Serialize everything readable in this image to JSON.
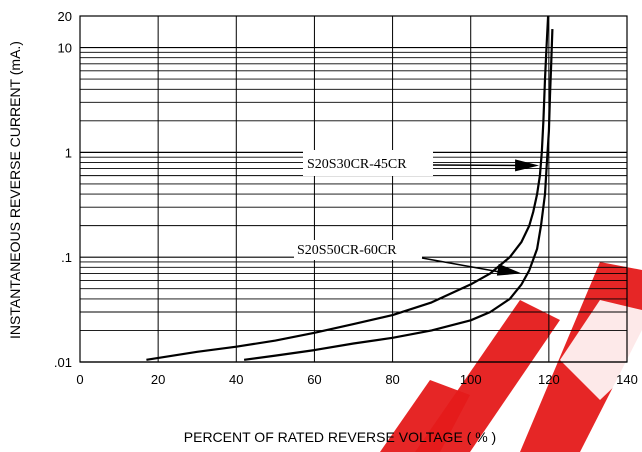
{
  "chart_data": {
    "type": "line",
    "xlabel": "PERCENT OF RATED REVERSE VOLTAGE ( % )",
    "ylabel": "INSTANTANEOUS REVERSE CURRENT (mA.)",
    "xlim": [
      0,
      140
    ],
    "ylim": [
      0.01,
      20
    ],
    "yscale": "log",
    "grid": true,
    "x_ticks": [
      "0",
      "20",
      "40",
      "60",
      "80",
      "100",
      "120",
      "140"
    ],
    "y_ticks": [
      ".01",
      ".1",
      "1",
      "10",
      "20"
    ],
    "series": [
      {
        "name": "S20S30CR-45CR",
        "x": [
          17,
          30,
          40,
          50,
          60,
          70,
          80,
          90,
          100,
          105,
          110,
          113,
          115,
          116,
          117,
          117.7,
          118.2,
          118.6,
          119,
          119.4,
          119.8
        ],
        "y": [
          0.0105,
          0.0125,
          0.014,
          0.016,
          0.019,
          0.023,
          0.028,
          0.037,
          0.055,
          0.07,
          0.1,
          0.14,
          0.2,
          0.27,
          0.4,
          0.6,
          1.0,
          2.0,
          5.0,
          10,
          20
        ],
        "color": "#000000"
      },
      {
        "name": "S20S50CR-60CR",
        "x": [
          42,
          50,
          60,
          70,
          80,
          90,
          100,
          105,
          110,
          113,
          115,
          117,
          118,
          119,
          119.5,
          120,
          120.3,
          120.6,
          120.9
        ],
        "y": [
          0.0105,
          0.0115,
          0.013,
          0.015,
          0.017,
          0.02,
          0.025,
          0.03,
          0.04,
          0.055,
          0.075,
          0.12,
          0.2,
          0.4,
          0.8,
          1.6,
          3.5,
          7,
          15
        ],
        "color": "#000000"
      }
    ],
    "annotations": [
      {
        "text": "S20S30CR-45CR",
        "target_x": 117.5,
        "target_y": 0.75
      },
      {
        "text": "S20S50CR-60CR",
        "target_x": 113,
        "target_y": 0.07
      }
    ],
    "watermark": "EEPL",
    "watermark_color": "#e51a1a"
  }
}
